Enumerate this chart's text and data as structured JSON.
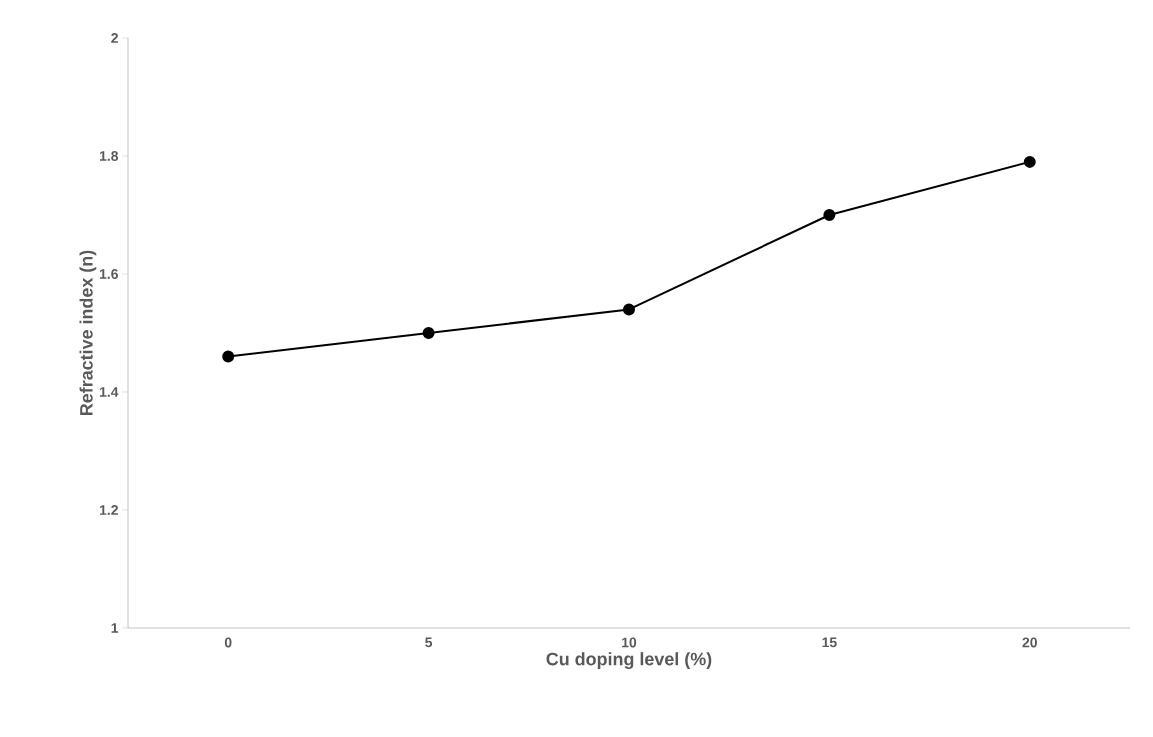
{
  "chart_data": {
    "type": "line",
    "xlabel": "Cu doping level (%)",
    "ylabel": "Refractive index (n)",
    "categories": [
      "0",
      "5",
      "10",
      "15",
      "20"
    ],
    "series": [
      {
        "color": "#000000",
        "values": [
          1.46,
          1.5,
          1.54,
          1.7,
          1.79
        ]
      }
    ],
    "ylim": [
      1,
      2
    ],
    "yticks": [
      1,
      1.2,
      1.4,
      1.6,
      1.8,
      2
    ],
    "marker": "circle",
    "line_style": "solid",
    "grid": false
  }
}
